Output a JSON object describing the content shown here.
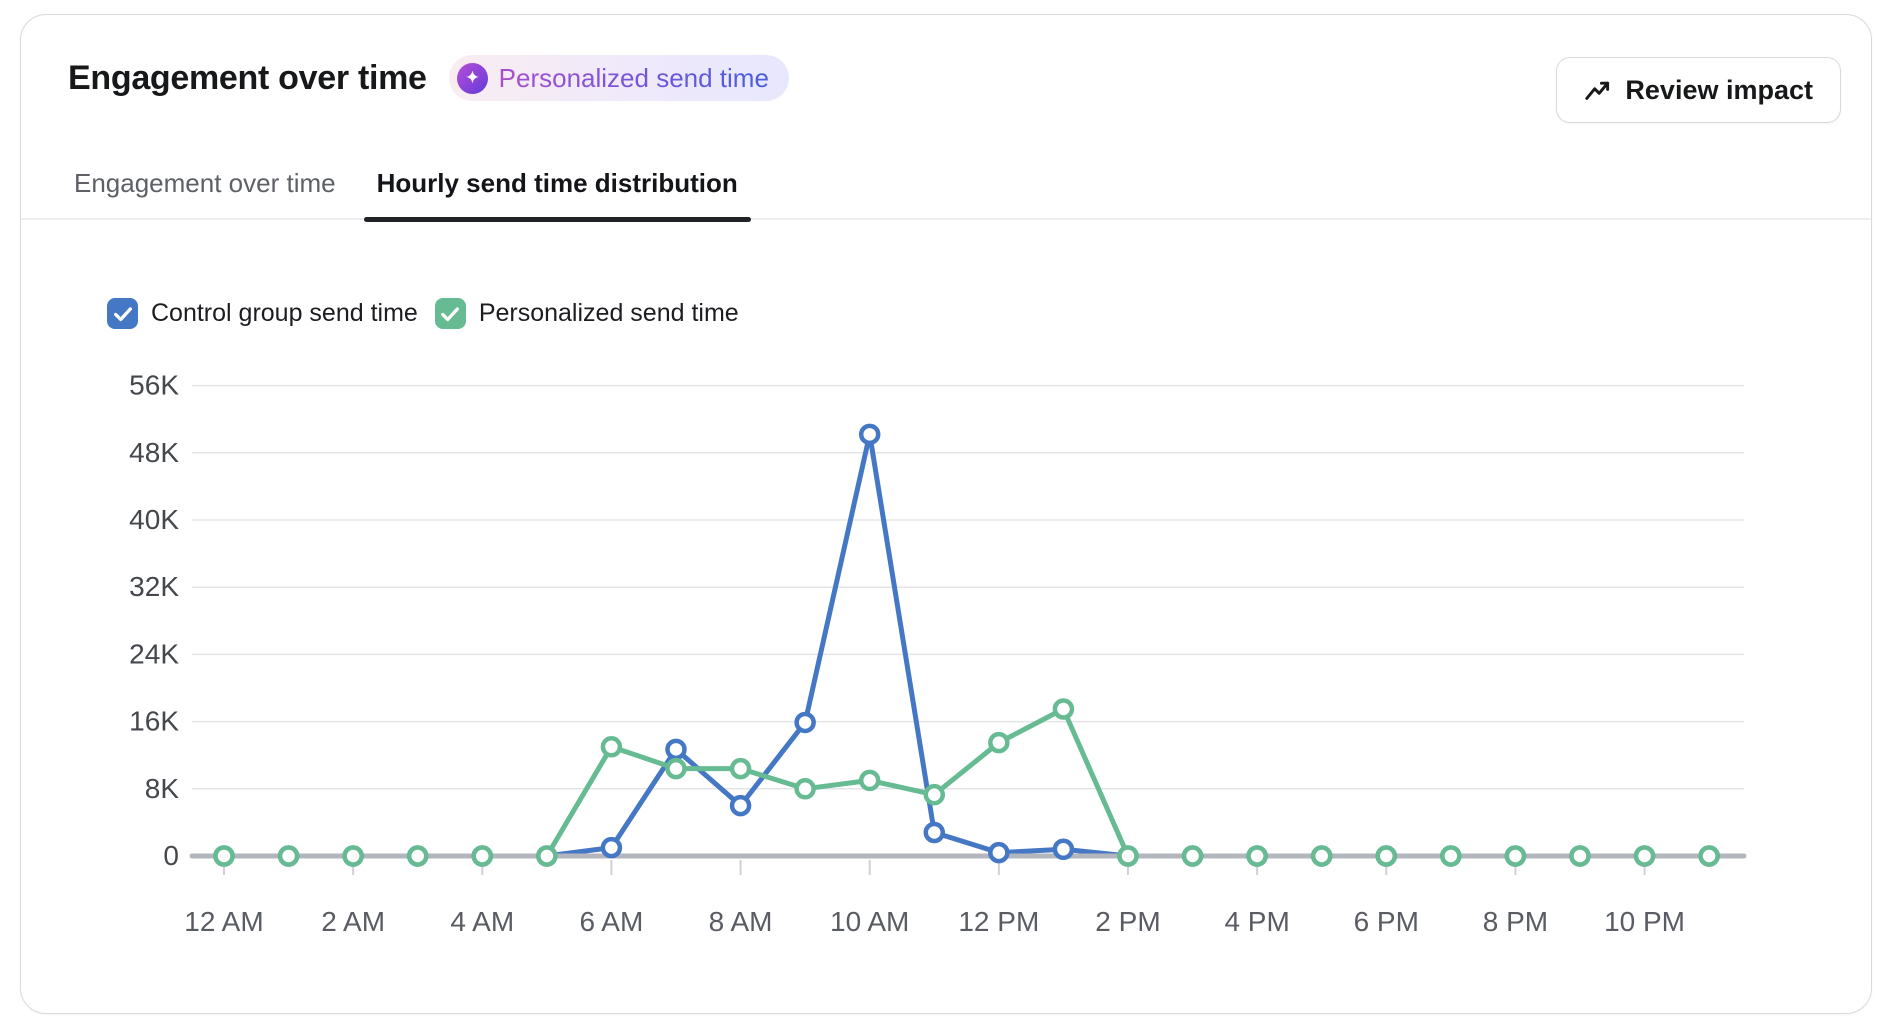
{
  "header": {
    "title": "Engagement over time",
    "badge": {
      "label": "Personalized send time",
      "icon": "sparkle-icon"
    },
    "review_button": {
      "label": "Review impact",
      "icon": "trending-up-icon"
    }
  },
  "tabs": [
    {
      "label": "Engagement over time",
      "active": false
    },
    {
      "label": "Hourly send time distribution",
      "active": true
    }
  ],
  "legend": [
    {
      "label": "Control group send time",
      "color": "#4477c4",
      "checked": true
    },
    {
      "label": "Personalized send time",
      "color": "#67bb92",
      "checked": true
    }
  ],
  "chart_data": {
    "type": "line",
    "title": "Hourly send time distribution",
    "categories": [
      "12 AM",
      "1 AM",
      "2 AM",
      "3 AM",
      "4 AM",
      "5 AM",
      "6 AM",
      "7 AM",
      "8 AM",
      "9 AM",
      "10 AM",
      "11 AM",
      "12 PM",
      "1 PM",
      "2 PM",
      "3 PM",
      "4 PM",
      "5 PM",
      "6 PM",
      "7 PM",
      "8 PM",
      "9 PM",
      "10 PM",
      "11 PM"
    ],
    "x_tick_labels": [
      "12 AM",
      "2 AM",
      "4 AM",
      "6 AM",
      "8 AM",
      "10 AM",
      "12 PM",
      "2 PM",
      "4 PM",
      "6 PM",
      "8 PM",
      "10 PM"
    ],
    "series": [
      {
        "name": "Control group send time",
        "color": "#4477c4",
        "marker": "circle-open",
        "values": [
          0,
          0,
          0,
          0,
          0,
          0,
          1000,
          12700,
          6000,
          15900,
          50200,
          2800,
          400,
          800,
          0,
          0,
          0,
          0,
          0,
          0,
          0,
          0,
          0,
          0
        ]
      },
      {
        "name": "Personalized send time",
        "color": "#67bb92",
        "marker": "circle-open",
        "values": [
          0,
          0,
          0,
          0,
          0,
          0,
          13000,
          10400,
          10400,
          8000,
          9000,
          7300,
          13500,
          17500,
          0,
          0,
          0,
          0,
          0,
          0,
          0,
          0,
          0,
          0
        ]
      }
    ],
    "xlabel": "",
    "ylabel": "",
    "ylim": [
      0,
      56000
    ],
    "y_tick_step": 8000,
    "y_tick_labels": [
      "0",
      "8K",
      "16K",
      "24K",
      "32K",
      "40K",
      "48K",
      "56K"
    ],
    "grid": true,
    "legend_position": "top-left"
  },
  "colors": {
    "grid_line": "#e4e5e9",
    "zero_axis": "#b3b6bc",
    "tick_mark": "#cfd1d6",
    "y_label_text": "#44474c",
    "x_label_text": "#595c62",
    "series_blue": "#4477c4",
    "series_green": "#67bb92"
  }
}
